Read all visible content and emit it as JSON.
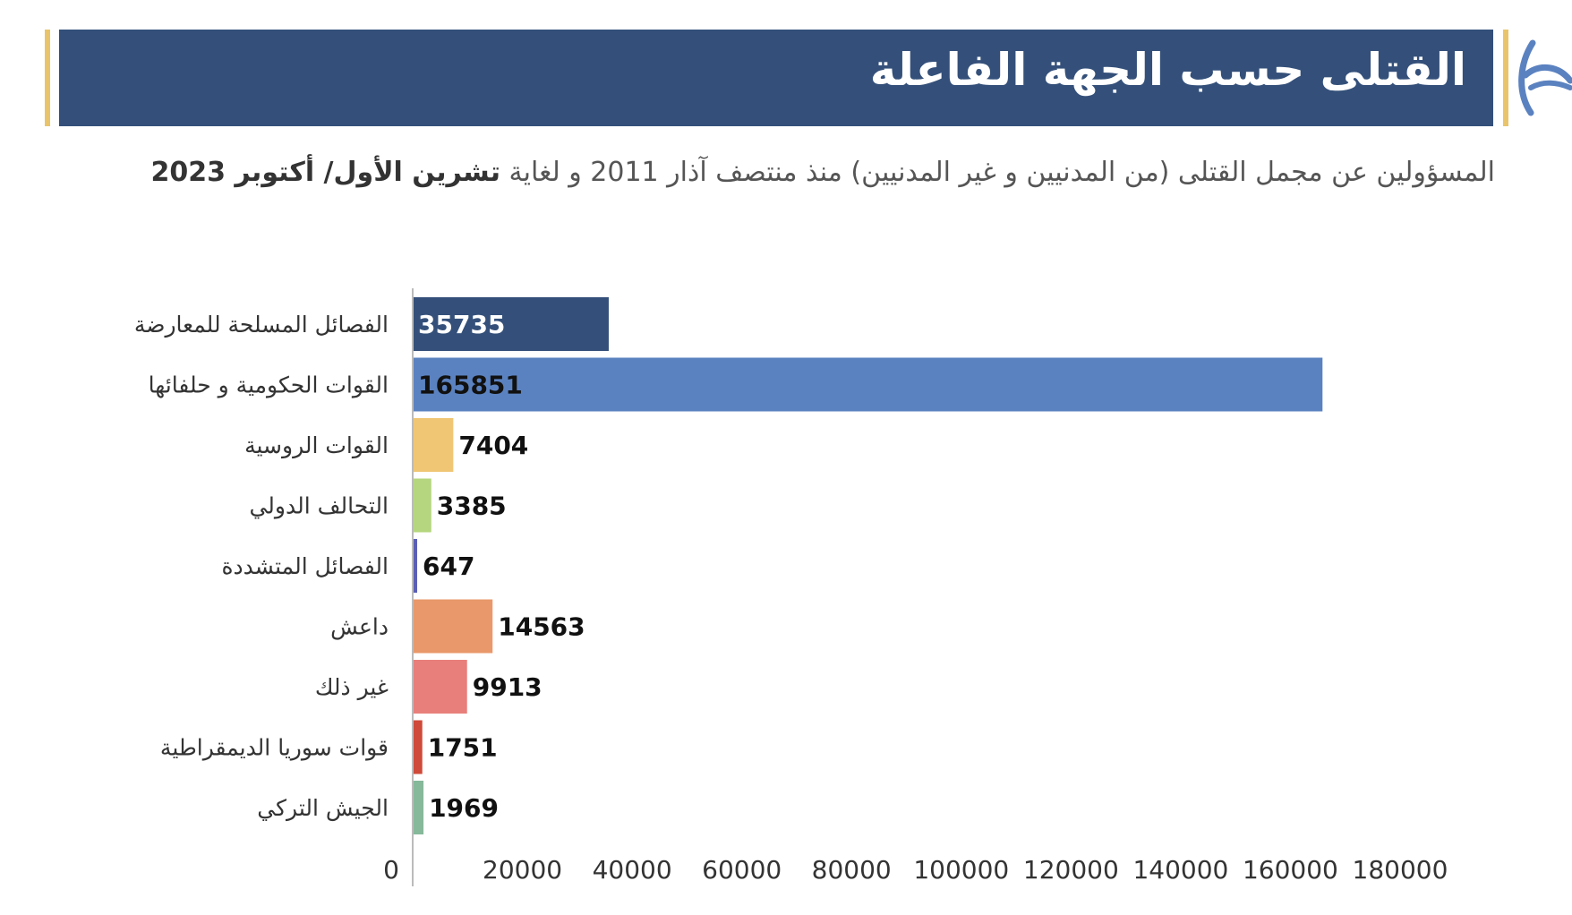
{
  "header": {
    "title": "القتلى حسب الجهة الفاعلة",
    "subtitle_main": "المسؤولين عن مجمل القتلى (من المدنيين و غير المدنيين) منذ منتصف آذار 2011 و لغاية",
    "subtitle_bold": "تشرين الأول/ أكتوبر 2023"
  },
  "brand": {
    "logo_icon": "brand-logo-icon",
    "accent": "#e9c46a",
    "banner_color": "#34507a"
  },
  "chart_data": {
    "type": "bar",
    "orientation": "horizontal",
    "categories": [
      "الفصائل المسلحة للمعارضة",
      "القوات الحكومية و حلفائها",
      "القوات الروسية",
      "التحالف الدولي",
      "الفصائل المتشددة",
      "داعش",
      "غير ذلك",
      "قوات سوريا الديمقراطية",
      "الجيش التركي"
    ],
    "values": [
      35735,
      165851,
      7404,
      3385,
      647,
      14563,
      9913,
      1751,
      1969
    ],
    "value_labels": [
      "35735",
      "165851",
      "7404",
      "3385",
      "647",
      "14563",
      "9913",
      "1751",
      "1969"
    ],
    "colors": [
      "#34507a",
      "#5b82c0",
      "#f0c674",
      "#b5d67e",
      "#5a5fb5",
      "#e8986a",
      "#e87f7a",
      "#cf4a3a",
      "#86b89a"
    ],
    "label_colors": [
      "#ffffff",
      "#111111",
      "#111111",
      "#111111",
      "#111111",
      "#111111",
      "#111111",
      "#111111",
      "#111111"
    ],
    "label_inside": [
      true,
      true,
      false,
      false,
      false,
      false,
      false,
      false,
      false
    ],
    "xlim": [
      0,
      180000
    ],
    "xticks": [
      "0",
      "20000",
      "40000",
      "60000",
      "80000",
      "100000",
      "120000",
      "140000",
      "160000",
      "180000"
    ],
    "grid": false,
    "legend": "none"
  }
}
